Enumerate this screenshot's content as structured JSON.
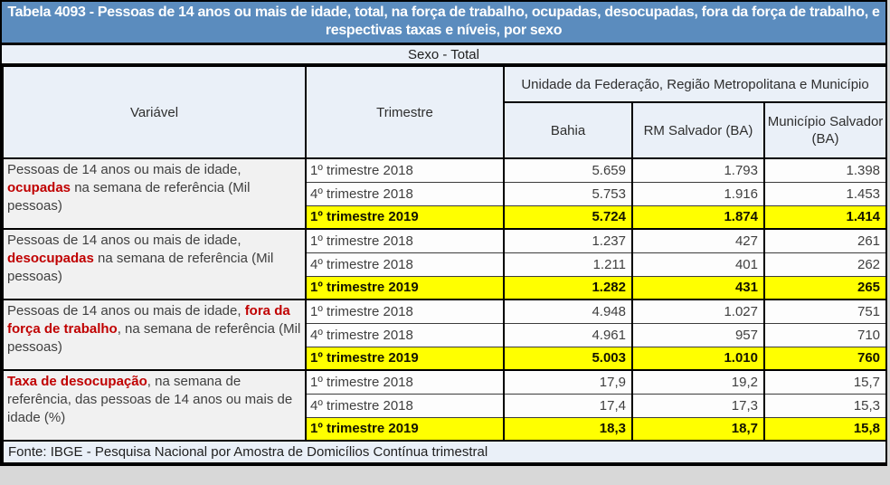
{
  "title": "Tabela 4093 - Pessoas de 14 anos ou mais de idade, total, na força de trabalho, ocupadas, desocupadas, fora da força de trabalho, e respectivas taxas e níveis, por sexo",
  "subtitle": "Sexo - Total",
  "header": {
    "variavel": "Variável",
    "trimestre": "Trimestre",
    "group": "Unidade da Federação, Região Metropolitana e Município",
    "cols": [
      "Bahia",
      "RM Salvador (BA)",
      "Município Salvador (BA)"
    ]
  },
  "groups": [
    {
      "variable_prefix": "Pessoas de 14 anos ou mais de idade, ",
      "variable_red": "ocupadas",
      "variable_suffix": " na semana de referência (Mil pessoas)",
      "rows": [
        {
          "trimestre": "1º trimestre 2018",
          "values": [
            "5.659",
            "1.793",
            "1.398"
          ],
          "highlight": false
        },
        {
          "trimestre": "4º trimestre 2018",
          "values": [
            "5.753",
            "1.916",
            "1.453"
          ],
          "highlight": false
        },
        {
          "trimestre": "1º trimestre 2019",
          "values": [
            "5.724",
            "1.874",
            "1.414"
          ],
          "highlight": true
        }
      ]
    },
    {
      "variable_prefix": "Pessoas de 14 anos ou mais de idade, ",
      "variable_red": "desocupadas",
      "variable_suffix": " na semana de referência (Mil pessoas)",
      "rows": [
        {
          "trimestre": "1º trimestre 2018",
          "values": [
            "1.237",
            "427",
            "261"
          ],
          "highlight": false
        },
        {
          "trimestre": "4º trimestre 2018",
          "values": [
            "1.211",
            "401",
            "262"
          ],
          "highlight": false
        },
        {
          "trimestre": "1º trimestre 2019",
          "values": [
            "1.282",
            "431",
            "265"
          ],
          "highlight": true
        }
      ]
    },
    {
      "variable_prefix": "Pessoas de 14 anos ou mais de idade, ",
      "variable_red": "fora da força de trabalho",
      "variable_suffix": ", na semana de referência (Mil pessoas)",
      "rows": [
        {
          "trimestre": "1º trimestre 2018",
          "values": [
            "4.948",
            "1.027",
            "751"
          ],
          "highlight": false
        },
        {
          "trimestre": "4º trimestre 2018",
          "values": [
            "4.961",
            "957",
            "710"
          ],
          "highlight": false
        },
        {
          "trimestre": "1º trimestre 2019",
          "values": [
            "5.003",
            "1.010",
            "760"
          ],
          "highlight": true
        }
      ]
    },
    {
      "variable_prefix": "",
      "variable_red": "Taxa de desocupação",
      "variable_suffix": ", na semana de referência, das pessoas de 14 anos ou mais de idade (%)",
      "rows": [
        {
          "trimestre": "1º trimestre 2018",
          "values": [
            "17,9",
            "19,2",
            "15,7"
          ],
          "highlight": false
        },
        {
          "trimestre": "4º trimestre 2018",
          "values": [
            "17,4",
            "17,3",
            "15,3"
          ],
          "highlight": false
        },
        {
          "trimestre": "1º trimestre 2019",
          "values": [
            "18,3",
            "18,7",
            "15,8"
          ],
          "highlight": true
        }
      ]
    }
  ],
  "footer": "Fonte: IBGE - Pesquisa Nacional por Amostra de Domicílios Contínua trimestral",
  "colors": {
    "title_bg": "#5b8cbe",
    "title_text": "#ffffff",
    "header_bg": "#eaf0f8",
    "variable_cell_bg": "#f1f1f1",
    "highlight_bg": "#ffff00",
    "red_text": "#c00000",
    "border": "#000000"
  },
  "chart_data": {
    "type": "table",
    "title": "Tabela 4093 - Pessoas de 14 anos ou mais de idade, total, na força de trabalho, ocupadas, desocupadas, fora da força de trabalho, e respectivas taxas e níveis, por sexo",
    "subtitle": "Sexo - Total",
    "column_group_label": "Unidade da Federação, Região Metropolitana e Município",
    "columns": [
      "Variável",
      "Trimestre",
      "Bahia",
      "RM Salvador (BA)",
      "Município Salvador (BA)"
    ],
    "rows": [
      [
        "Pessoas de 14 anos ou mais de idade, ocupadas na semana de referência (Mil pessoas)",
        "1º trimestre 2018",
        "5.659",
        "1.793",
        "1.398"
      ],
      [
        "Pessoas de 14 anos ou mais de idade, ocupadas na semana de referência (Mil pessoas)",
        "4º trimestre 2018",
        "5.753",
        "1.916",
        "1.453"
      ],
      [
        "Pessoas de 14 anos ou mais de idade, ocupadas na semana de referência (Mil pessoas)",
        "1º trimestre 2019",
        "5.724",
        "1.874",
        "1.414"
      ],
      [
        "Pessoas de 14 anos ou mais de idade, desocupadas na semana de referência (Mil pessoas)",
        "1º trimestre 2018",
        "1.237",
        "427",
        "261"
      ],
      [
        "Pessoas de 14 anos ou mais de idade, desocupadas na semana de referência (Mil pessoas)",
        "4º trimestre 2018",
        "1.211",
        "401",
        "262"
      ],
      [
        "Pessoas de 14 anos ou mais de idade, desocupadas na semana de referência (Mil pessoas)",
        "1º trimestre 2019",
        "1.282",
        "431",
        "265"
      ],
      [
        "Pessoas de 14 anos ou mais de idade, fora da força de trabalho, na semana de referência (Mil pessoas)",
        "1º trimestre 2018",
        "4.948",
        "1.027",
        "751"
      ],
      [
        "Pessoas de 14 anos ou mais de idade, fora da força de trabalho, na semana de referência (Mil pessoas)",
        "4º trimestre 2018",
        "4.961",
        "957",
        "710"
      ],
      [
        "Pessoas de 14 anos ou mais de idade, fora da força de trabalho, na semana de referência (Mil pessoas)",
        "1º trimestre 2019",
        "5.003",
        "1.010",
        "760"
      ],
      [
        "Taxa de desocupação, na semana de referência, das pessoas de 14 anos ou mais de idade (%)",
        "1º trimestre 2018",
        "17,9",
        "19,2",
        "15,7"
      ],
      [
        "Taxa de desocupação, na semana de referência, das pessoas de 14 anos ou mais de idade (%)",
        "4º trimestre 2018",
        "17,4",
        "17,3",
        "15,3"
      ],
      [
        "Taxa de desocupação, na semana de referência, das pessoas de 14 anos ou mais de idade (%)",
        "1º trimestre 2019",
        "18,3",
        "18,7",
        "15,8"
      ]
    ],
    "highlighted_rows": [
      2,
      5,
      8,
      11
    ],
    "source": "Fonte: IBGE - Pesquisa Nacional por Amostra de Domicílios Contínua trimestral"
  }
}
